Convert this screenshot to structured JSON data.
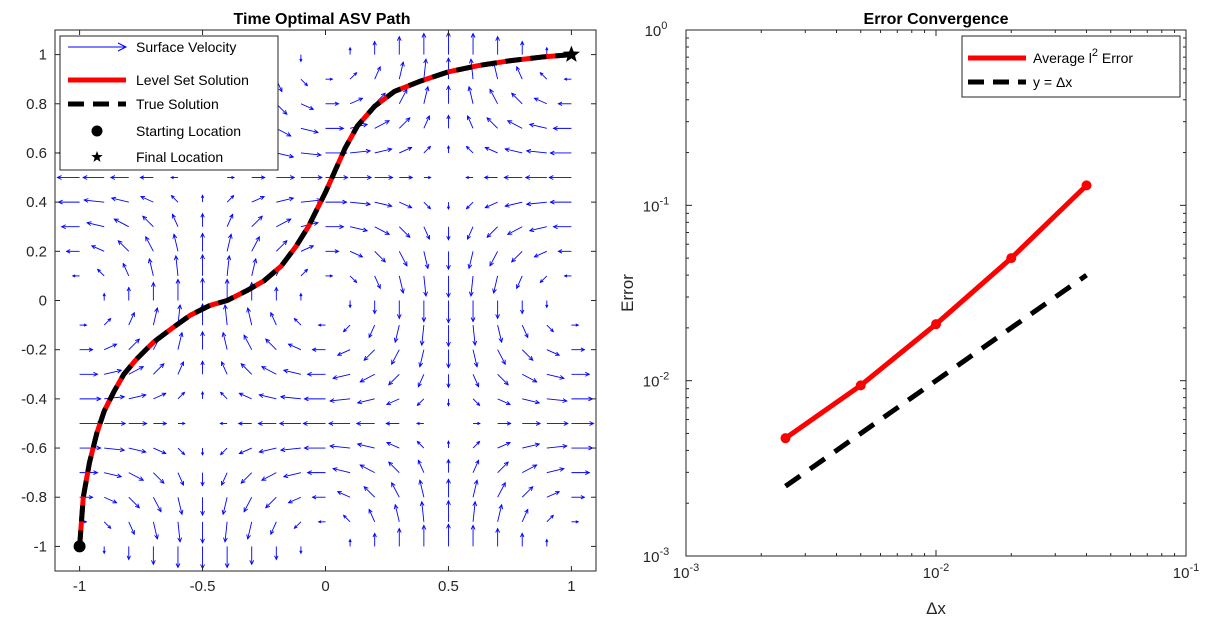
{
  "chart_data": [
    {
      "type": "line",
      "title": "Time Optimal ASV Path",
      "xlabel": "",
      "ylabel": "",
      "xlim": [
        -1.1,
        1.1
      ],
      "ylim": [
        -1.1,
        1.1
      ],
      "xticks": [
        -1,
        -0.5,
        0,
        0.5,
        1
      ],
      "xtick_labels": [
        "-1",
        "-0.5",
        "0",
        "0.5",
        "1"
      ],
      "yticks": [
        -1,
        -0.8,
        -0.6,
        -0.4,
        -0.2,
        0,
        0.2,
        0.4,
        0.6,
        0.8,
        1
      ],
      "ytick_labels": [
        "-1",
        "-0.8",
        "-0.6",
        "-0.4",
        "-0.2",
        "0",
        "0.2",
        "0.4",
        "0.6",
        "0.8",
        "1"
      ],
      "grid": false,
      "legend_position": "top-left",
      "legend": [
        {
          "label": "Surface Velocity",
          "style": "quiver",
          "color": "#0000ff"
        },
        {
          "label": "Level Set Solution",
          "style": "solid",
          "color": "#ff0000"
        },
        {
          "label": "True Solution",
          "style": "dashed",
          "color": "#000000"
        },
        {
          "label": "Starting Location",
          "style": "circle-marker",
          "color": "#000000"
        },
        {
          "label": "Final Location",
          "style": "star-marker",
          "color": "#000000"
        }
      ],
      "vector_field": {
        "description": "cellular vortex field u = cos(pi x) sin(pi y), v = -sin(pi x) cos(pi y)",
        "grid": [
          -1,
          -0.9,
          -0.8,
          -0.7,
          -0.6,
          -0.5,
          -0.4,
          -0.3,
          -0.2,
          -0.1,
          0,
          0.1,
          0.2,
          0.3,
          0.4,
          0.5,
          0.6,
          0.7,
          0.8,
          0.9,
          1
        ],
        "color": "#0000ff"
      },
      "series": [
        {
          "name": "Level Set Solution",
          "color": "#ff0000",
          "points": [
            [
              -1.0,
              -1.0
            ],
            [
              -0.985,
              -0.8
            ],
            [
              -0.96,
              -0.66
            ],
            [
              -0.93,
              -0.54
            ],
            [
              -0.9,
              -0.45
            ],
            [
              -0.86,
              -0.37
            ],
            [
              -0.82,
              -0.3
            ],
            [
              -0.77,
              -0.24
            ],
            [
              -0.7,
              -0.17
            ],
            [
              -0.62,
              -0.11
            ],
            [
              -0.55,
              -0.06
            ],
            [
              -0.47,
              -0.02
            ],
            [
              -0.4,
              0.0
            ],
            [
              -0.32,
              0.04
            ],
            [
              -0.25,
              0.08
            ],
            [
              -0.18,
              0.14
            ],
            [
              -0.12,
              0.22
            ],
            [
              -0.07,
              0.3
            ],
            [
              -0.03,
              0.38
            ],
            [
              0.0,
              0.44
            ],
            [
              0.04,
              0.53
            ],
            [
              0.08,
              0.62
            ],
            [
              0.13,
              0.71
            ],
            [
              0.2,
              0.79
            ],
            [
              0.28,
              0.85
            ],
            [
              0.38,
              0.89
            ],
            [
              0.5,
              0.93
            ],
            [
              0.62,
              0.955
            ],
            [
              0.75,
              0.975
            ],
            [
              0.88,
              0.99
            ],
            [
              1.0,
              1.0
            ]
          ]
        },
        {
          "name": "True Solution",
          "color": "#000000",
          "points": [
            [
              -1.0,
              -1.0
            ],
            [
              -0.985,
              -0.8
            ],
            [
              -0.96,
              -0.66
            ],
            [
              -0.93,
              -0.54
            ],
            [
              -0.9,
              -0.45
            ],
            [
              -0.86,
              -0.37
            ],
            [
              -0.82,
              -0.3
            ],
            [
              -0.77,
              -0.24
            ],
            [
              -0.7,
              -0.17
            ],
            [
              -0.62,
              -0.11
            ],
            [
              -0.55,
              -0.06
            ],
            [
              -0.47,
              -0.02
            ],
            [
              -0.4,
              0.0
            ],
            [
              -0.32,
              0.04
            ],
            [
              -0.25,
              0.08
            ],
            [
              -0.18,
              0.14
            ],
            [
              -0.12,
              0.22
            ],
            [
              -0.07,
              0.3
            ],
            [
              -0.03,
              0.38
            ],
            [
              0.0,
              0.44
            ],
            [
              0.04,
              0.53
            ],
            [
              0.08,
              0.62
            ],
            [
              0.13,
              0.71
            ],
            [
              0.2,
              0.79
            ],
            [
              0.28,
              0.85
            ],
            [
              0.38,
              0.89
            ],
            [
              0.5,
              0.93
            ],
            [
              0.62,
              0.955
            ],
            [
              0.75,
              0.975
            ],
            [
              0.88,
              0.99
            ],
            [
              1.0,
              1.0
            ]
          ]
        }
      ],
      "start_point": [
        -1,
        -1
      ],
      "final_point": [
        1,
        1
      ]
    },
    {
      "type": "line",
      "title": "Error Convergence",
      "xlabel": "Δx",
      "ylabel": "Error",
      "xscale": "log",
      "yscale": "log",
      "xlim": [
        0.001,
        0.1
      ],
      "ylim": [
        0.001,
        1
      ],
      "xticks": [
        0.001,
        0.01,
        0.1
      ],
      "xtick_labels": [
        {
          "base": "10",
          "exp": "-3"
        },
        {
          "base": "10",
          "exp": "-2"
        },
        {
          "base": "10",
          "exp": "-1"
        }
      ],
      "yticks": [
        0.001,
        0.01,
        0.1,
        1
      ],
      "ytick_labels": [
        {
          "base": "10",
          "exp": "-3"
        },
        {
          "base": "10",
          "exp": "-2"
        },
        {
          "base": "10",
          "exp": "-1"
        },
        {
          "base": "10",
          "exp": "0"
        }
      ],
      "grid": false,
      "legend_position": "top-right",
      "legend": [
        {
          "label_main": "Average l",
          "label_sup": "2",
          "label_tail": " Error",
          "style": "solid",
          "color": "#ff0000"
        },
        {
          "label_main": "y = Δx",
          "label_sup": "",
          "label_tail": "",
          "style": "dashed",
          "color": "#000000"
        }
      ],
      "series": [
        {
          "name": "Average l2 Error",
          "color": "#ff0000",
          "markers": true,
          "x": [
            0.0025,
            0.005,
            0.01,
            0.02,
            0.04
          ],
          "y": [
            0.0047,
            0.0094,
            0.021,
            0.05,
            0.13
          ]
        },
        {
          "name": "y = Δx",
          "color": "#000000",
          "dashed": true,
          "x": [
            0.0025,
            0.04
          ],
          "y": [
            0.0025,
            0.04
          ]
        }
      ]
    }
  ]
}
